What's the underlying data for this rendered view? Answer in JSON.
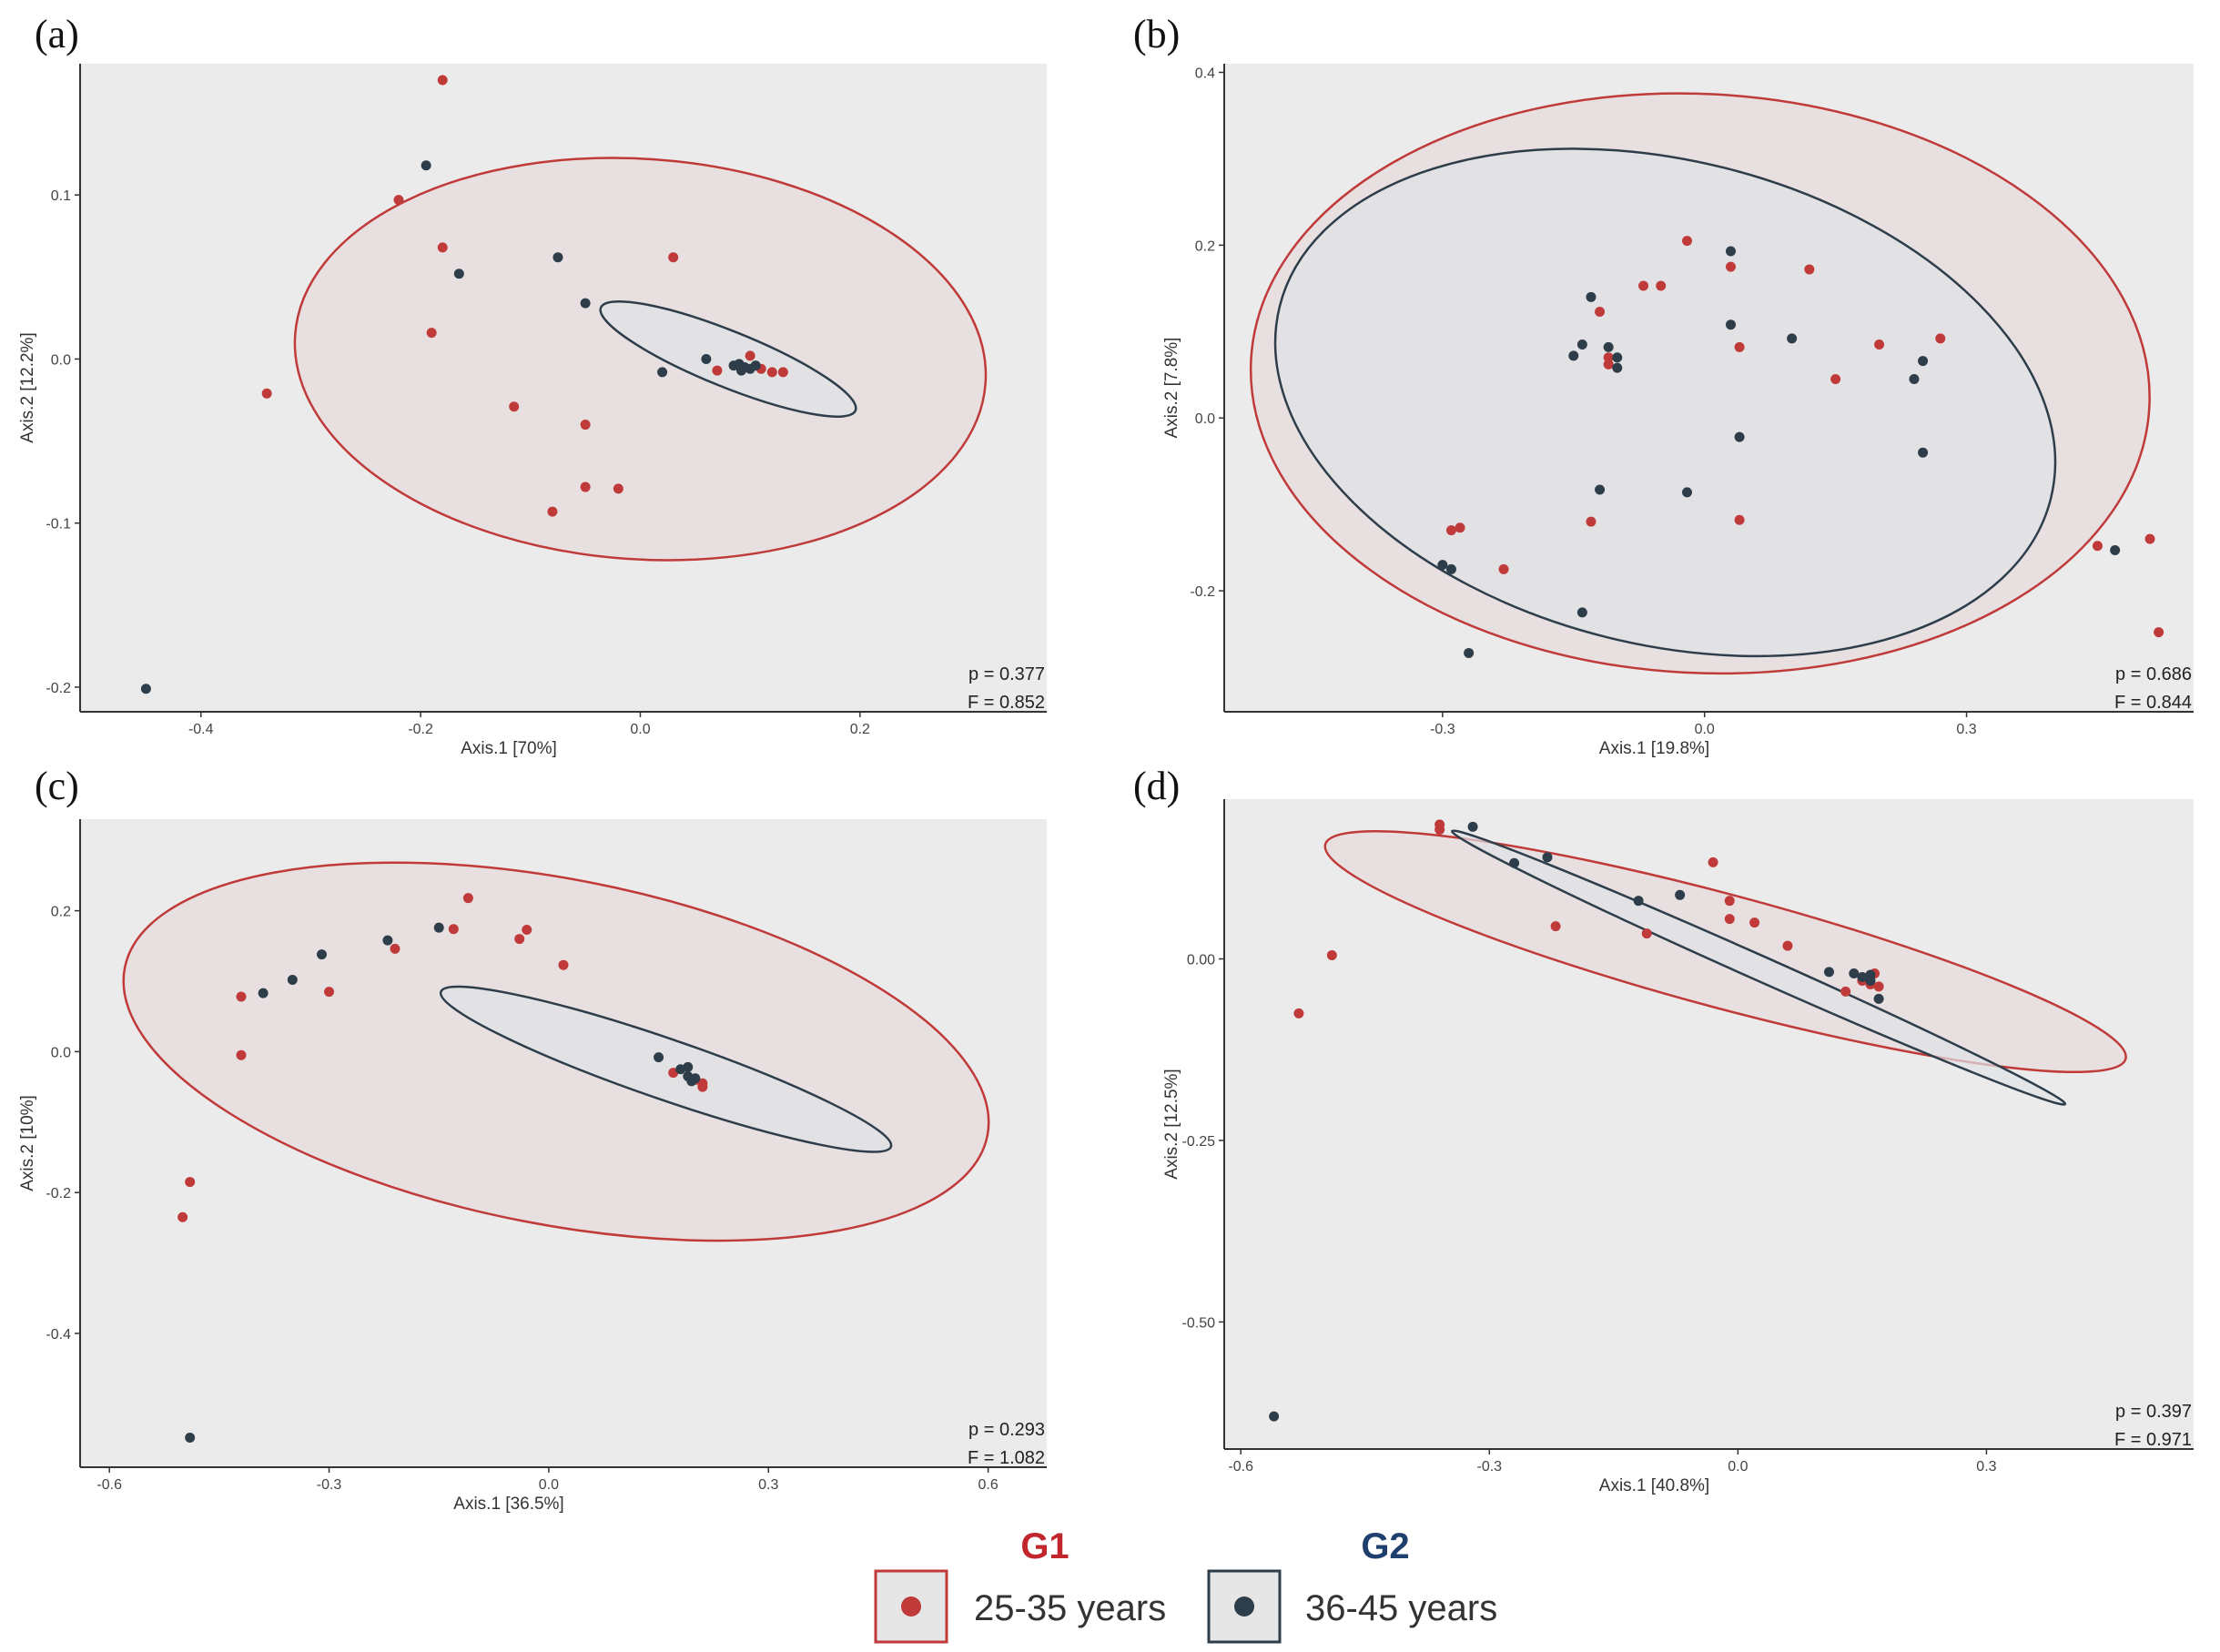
{
  "chart_data": [
    {
      "panel": "(a)",
      "type": "scatter",
      "xlabel": "Axis.1   [70%]",
      "ylabel": "Axis.2   [12.2%]",
      "xlim": [
        -0.51,
        0.37
      ],
      "ylim": [
        -0.215,
        0.18
      ],
      "xticks": [
        -0.4,
        -0.2,
        0.0,
        0.2
      ],
      "xticklabels": [
        "-0.4",
        "-0.2",
        "0.0",
        "0.2"
      ],
      "yticks": [
        -0.2,
        -0.1,
        0.0,
        0.1
      ],
      "yticklabels": [
        "-0.2",
        "-0.1",
        "0.0",
        "0.1"
      ],
      "stats": {
        "p": "p = 0.377",
        "F": "F = 0.852"
      },
      "ellipses": [
        {
          "series": "G1",
          "cx": 0.0,
          "cy": 0.0,
          "rx": 0.315,
          "ry": 0.122,
          "angle_deg": -4
        },
        {
          "series": "G2",
          "cx": 0.08,
          "cy": 0.0,
          "rx": 0.125,
          "ry": 0.017,
          "angle_deg": -22
        }
      ],
      "series": [
        {
          "name": "G1",
          "points": [
            [
              -0.18,
              0.17
            ],
            [
              -0.22,
              0.097
            ],
            [
              -0.18,
              0.068
            ],
            [
              -0.19,
              0.016
            ],
            [
              -0.34,
              -0.021
            ],
            [
              -0.115,
              -0.029
            ],
            [
              0.03,
              0.062
            ],
            [
              -0.05,
              -0.04
            ],
            [
              -0.05,
              -0.078
            ],
            [
              -0.02,
              -0.079
            ],
            [
              -0.08,
              -0.093
            ],
            [
              0.07,
              -0.007
            ],
            [
              0.1,
              0.002
            ],
            [
              0.11,
              -0.006
            ],
            [
              0.12,
              -0.008
            ],
            [
              0.13,
              -0.008
            ]
          ]
        },
        {
          "name": "G2",
          "points": [
            [
              -0.195,
              0.118
            ],
            [
              -0.165,
              0.052
            ],
            [
              -0.075,
              0.062
            ],
            [
              -0.05,
              0.034
            ],
            [
              0.02,
              -0.008
            ],
            [
              0.06,
              0.0
            ],
            [
              0.085,
              -0.004
            ],
            [
              0.09,
              -0.003
            ],
            [
              0.095,
              -0.005
            ],
            [
              0.1,
              -0.006
            ],
            [
              0.105,
              -0.004
            ],
            [
              0.092,
              -0.007
            ],
            [
              -0.45,
              -0.201
            ]
          ]
        }
      ]
    },
    {
      "panel": "(b)",
      "type": "scatter",
      "xlabel": "Axis.1   [19.8%]",
      "ylabel": "Axis.2   [7.8%]",
      "xlim": [
        -0.55,
        0.56
      ],
      "ylim": [
        -0.34,
        0.41
      ],
      "xticks": [
        -0.3,
        0.0,
        0.3
      ],
      "xticklabels": [
        "-0.3",
        "0.0",
        "0.3"
      ],
      "yticks": [
        -0.2,
        0.0,
        0.2,
        0.4
      ],
      "yticklabels": [
        "-0.2",
        "0.0",
        "0.2",
        "0.4"
      ],
      "stats": {
        "p": "p = 0.686",
        "F": "F = 0.844"
      },
      "ellipses": [
        {
          "series": "G1",
          "cx": -0.005,
          "cy": 0.04,
          "rx": 0.515,
          "ry": 0.335,
          "angle_deg": -3
        },
        {
          "series": "G2",
          "cx": -0.045,
          "cy": 0.018,
          "rx": 0.455,
          "ry": 0.28,
          "angle_deg": -14
        }
      ],
      "series": [
        {
          "name": "G1",
          "points": [
            [
              -0.02,
              0.205
            ],
            [
              0.03,
              0.175
            ],
            [
              0.12,
              0.172
            ],
            [
              -0.05,
              0.153
            ],
            [
              -0.07,
              0.153
            ],
            [
              -0.12,
              0.123
            ],
            [
              0.2,
              0.085
            ],
            [
              0.27,
              0.092
            ],
            [
              -0.11,
              0.07
            ],
            [
              -0.11,
              0.062
            ],
            [
              0.04,
              0.082
            ],
            [
              0.15,
              0.045
            ],
            [
              -0.13,
              -0.12
            ],
            [
              0.04,
              -0.118
            ],
            [
              -0.28,
              -0.127
            ],
            [
              -0.29,
              -0.13
            ],
            [
              -0.23,
              -0.175
            ],
            [
              0.45,
              -0.148
            ],
            [
              0.51,
              -0.14
            ],
            [
              0.52,
              -0.248
            ]
          ]
        },
        {
          "name": "G2",
          "points": [
            [
              -0.13,
              0.14
            ],
            [
              -0.14,
              0.085
            ],
            [
              -0.15,
              0.072
            ],
            [
              -0.11,
              0.082
            ],
            [
              -0.1,
              0.07
            ],
            [
              -0.1,
              0.058
            ],
            [
              0.03,
              0.193
            ],
            [
              0.03,
              0.108
            ],
            [
              0.1,
              0.092
            ],
            [
              0.25,
              0.066
            ],
            [
              0.24,
              0.045
            ],
            [
              0.04,
              -0.022
            ],
            [
              0.25,
              -0.04
            ],
            [
              -0.12,
              -0.083
            ],
            [
              -0.02,
              -0.086
            ],
            [
              -0.3,
              -0.17
            ],
            [
              -0.29,
              -0.175
            ],
            [
              -0.14,
              -0.225
            ],
            [
              -0.27,
              -0.272
            ],
            [
              0.47,
              -0.153
            ]
          ]
        }
      ]
    },
    {
      "panel": "(c)",
      "type": "scatter",
      "xlabel": "Axis.1   [36.5%]",
      "ylabel": "Axis.2   [10%]",
      "xlim": [
        -0.64,
        0.68
      ],
      "ylim": [
        -0.59,
        0.33
      ],
      "xticks": [
        -0.6,
        -0.3,
        0.0,
        0.3,
        0.6
      ],
      "xticklabels": [
        "-0.6",
        "-0.3",
        "0.0",
        "0.3",
        "0.6"
      ],
      "yticks": [
        -0.4,
        -0.2,
        0.0,
        0.2
      ],
      "yticklabels": [
        "-0.4",
        "-0.2",
        "0.0",
        "0.2"
      ],
      "stats": {
        "p": "p = 0.293",
        "F": "F = 1.082"
      },
      "ellipses": [
        {
          "series": "G1",
          "cx": 0.01,
          "cy": 0.0,
          "rx": 0.6,
          "ry": 0.245,
          "angle_deg": -11
        },
        {
          "series": "G2",
          "cx": 0.16,
          "cy": -0.025,
          "rx": 0.325,
          "ry": 0.043,
          "angle_deg": -19
        }
      ],
      "series": [
        {
          "name": "G1",
          "points": [
            [
              -0.11,
              0.218
            ],
            [
              -0.13,
              0.174
            ],
            [
              -0.03,
              0.173
            ],
            [
              -0.04,
              0.16
            ],
            [
              -0.21,
              0.146
            ],
            [
              0.02,
              0.123
            ],
            [
              -0.3,
              0.085
            ],
            [
              -0.42,
              0.078
            ],
            [
              -0.42,
              -0.005
            ],
            [
              -0.49,
              -0.185
            ],
            [
              -0.5,
              -0.235
            ],
            [
              0.17,
              -0.03
            ],
            [
              0.2,
              -0.04
            ],
            [
              0.21,
              -0.045
            ],
            [
              0.21,
              -0.05
            ]
          ]
        },
        {
          "name": "G2",
          "points": [
            [
              -0.15,
              0.176
            ],
            [
              -0.22,
              0.158
            ],
            [
              -0.31,
              0.138
            ],
            [
              -0.35,
              0.102
            ],
            [
              -0.39,
              0.083
            ],
            [
              0.15,
              -0.008
            ],
            [
              0.18,
              -0.025
            ],
            [
              0.19,
              -0.022
            ],
            [
              0.19,
              -0.035
            ],
            [
              0.2,
              -0.038
            ],
            [
              0.195,
              -0.042
            ],
            [
              -0.49,
              -0.548
            ]
          ]
        }
      ]
    },
    {
      "panel": "(d)",
      "type": "scatter",
      "xlabel": "Axis.1   [40.8%]",
      "ylabel": "Axis.2   [12.5%]",
      "xlim": [
        -0.62,
        0.55
      ],
      "ylim": [
        -0.675,
        0.22
      ],
      "xticks": [
        -0.6,
        -0.3,
        0.0,
        0.3
      ],
      "xticklabels": [
        "-0.6",
        "-0.3",
        "0.0",
        "0.3"
      ],
      "yticks": [
        -0.5,
        -0.25,
        0.0
      ],
      "yticklabels": [
        "-0.50",
        "-0.25",
        "0.00"
      ],
      "stats": {
        "p": "p = 0.397",
        "F": "F = 0.971"
      },
      "ellipses": [
        {
          "series": "G1",
          "cx": -0.015,
          "cy": 0.01,
          "rx": 0.5,
          "ry": 0.078,
          "angle_deg": -15
        },
        {
          "series": "G2",
          "cx": 0.025,
          "cy": -0.012,
          "rx": 0.405,
          "ry": 0.017,
          "angle_deg": -24
        }
      ],
      "series": [
        {
          "name": "G1",
          "points": [
            [
              -0.36,
              0.185
            ],
            [
              -0.36,
              0.178
            ],
            [
              -0.03,
              0.133
            ],
            [
              -0.01,
              0.08
            ],
            [
              -0.22,
              0.045
            ],
            [
              -0.11,
              0.035
            ],
            [
              -0.01,
              0.055
            ],
            [
              0.02,
              0.05
            ],
            [
              0.06,
              0.018
            ],
            [
              0.13,
              -0.045
            ],
            [
              0.15,
              -0.03
            ],
            [
              0.16,
              -0.035
            ],
            [
              0.17,
              -0.038
            ],
            [
              0.165,
              -0.02
            ],
            [
              -0.49,
              0.005
            ],
            [
              -0.53,
              -0.075
            ]
          ]
        },
        {
          "name": "G2",
          "points": [
            [
              -0.32,
              0.182
            ],
            [
              -0.27,
              0.132
            ],
            [
              -0.23,
              0.14
            ],
            [
              -0.07,
              0.088
            ],
            [
              -0.12,
              0.08
            ],
            [
              0.11,
              -0.018
            ],
            [
              0.14,
              -0.02
            ],
            [
              0.15,
              -0.025
            ],
            [
              0.16,
              -0.022
            ],
            [
              0.16,
              -0.03
            ],
            [
              0.17,
              -0.055
            ],
            [
              -0.56,
              -0.63
            ]
          ]
        }
      ]
    }
  ],
  "legend": {
    "g1": {
      "title": "G1",
      "label": "25-35 years"
    },
    "g2": {
      "title": "G2",
      "label": "36-45 years"
    }
  },
  "colors": {
    "g1": "#c03a3a",
    "g2": "#2e3d4a",
    "g1_fill": "#e8dede",
    "g2_fill": "#e0e2e5",
    "panel_bg": "#ebebeb",
    "g1_title": "#c0262c",
    "g2_title": "#1f3f6e"
  }
}
